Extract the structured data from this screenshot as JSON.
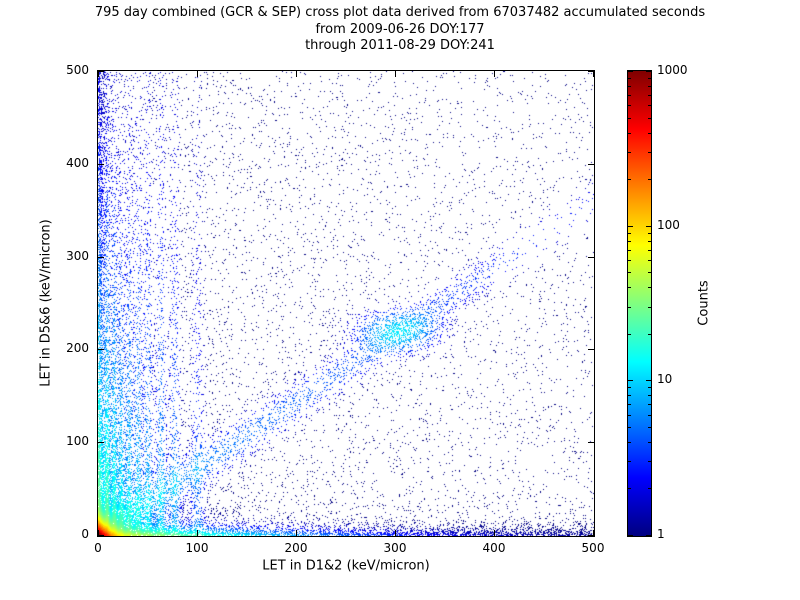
{
  "figure": {
    "title_line1": "795 day combined (GCR & SEP) cross plot data derived from 67037482 accumulated seconds",
    "title_line2": "from 2009-06-26 DOY:177",
    "title_line3": "through 2011-08-29 DOY:241"
  },
  "period": {
    "days": 795,
    "accumulated_seconds": 67037482,
    "start_date": "2009-06-26",
    "start_doy": 177,
    "end_date": "2011-08-29",
    "end_doy": 241
  },
  "chart_data": {
    "type": "heatmap",
    "subtype": "2D histogram cross plot rendered as 1-px density scatter with log color scale",
    "title": "795 day combined (GCR & SEP) cross plot data derived from 67037482 accumulated seconds from 2009-06-26 DOY:177 through 2011-08-29 DOY:241",
    "xlabel": "LET in D1&2 (keV/micron)",
    "ylabel": "LET in D5&6 (keV/micron)",
    "xlim": [
      0,
      500
    ],
    "ylim": [
      0,
      500
    ],
    "x_ticks": [
      0,
      100,
      200,
      300,
      400,
      500
    ],
    "y_ticks": [
      0,
      100,
      200,
      300,
      400,
      500
    ],
    "grid": false,
    "colorbar": {
      "label": "Counts",
      "scale": "log",
      "min": 1,
      "max": 1000,
      "ticks": [
        1,
        10,
        100,
        1000
      ],
      "colormap": "jet"
    },
    "features": [
      "intense hotspot at origin, counts up to ~1000 (red/orange core within ~10 keV/micron, yellow/green to ~15, cyan to ~35)",
      "dense band hugging the x-axis (y~0) fading toward x=500",
      "dense band hugging the y-axis (x~0) fading with height",
      "vertical stripe clusters near x = 9, 16, 23, 31, 40, 50, 63, 77, 100 keV/micron extending to high LET",
      "diagonal correlation band y ~ 0.72x with a denser blob near (300, 220)",
      "sparse isolated single counts (dark blue) scattered across the full 0-500 range, denser at low LET"
    ],
    "render": {
      "seed": 42,
      "log_max": 3,
      "background": {
        "n_weighted": 5200,
        "n_uniform": 1600,
        "x_pow": 1.8,
        "y_pow": 1.25
      },
      "origin": {
        "peak": 1200,
        "sx": 5.5,
        "sy": 5.5,
        "clouds": [
          [
            4.5,
            4.5,
            7000
          ],
          [
            13,
            13,
            3000
          ],
          [
            38,
            34,
            2200
          ]
        ]
      },
      "bottom": {
        "amp": 60,
        "sy": 5,
        "sx": 90,
        "n": 3000,
        "x_pow": 1.2
      },
      "left": {
        "amp": 40,
        "sx": 4.5,
        "sy": 140,
        "n": 2000,
        "y_pow": 1.25
      },
      "stripes": [
        {
          "x": 9,
          "amp": 22,
          "sy": 150,
          "w": 1.8,
          "n": 700
        },
        {
          "x": 16,
          "amp": 18,
          "sy": 170,
          "w": 2.0,
          "n": 650
        },
        {
          "x": 23,
          "amp": 15,
          "sy": 160,
          "w": 2.2,
          "n": 600
        },
        {
          "x": 31,
          "amp": 13,
          "sy": 180,
          "w": 2.4,
          "n": 600
        },
        {
          "x": 40,
          "amp": 11,
          "sy": 200,
          "w": 2.6,
          "n": 550
        },
        {
          "x": 50,
          "amp": 9,
          "sy": 210,
          "w": 2.8,
          "n": 500
        },
        {
          "x": 63,
          "amp": 8,
          "sy": 230,
          "w": 3.0,
          "n": 450
        },
        {
          "x": 77,
          "amp": 6,
          "sy": 240,
          "w": 3.4,
          "n": 380
        },
        {
          "x": 100,
          "amp": 4,
          "sy": 220,
          "w": 4.0,
          "n": 350
        }
      ],
      "diagonal": {
        "slope": 0.72,
        "w": 13,
        "amp": 6,
        "n": 1600,
        "x_min": 20,
        "x_max": 400
      },
      "blob": {
        "x": 302,
        "y": 220,
        "sx": 24,
        "sy": 13,
        "amp": 8,
        "n": 900
      }
    }
  }
}
